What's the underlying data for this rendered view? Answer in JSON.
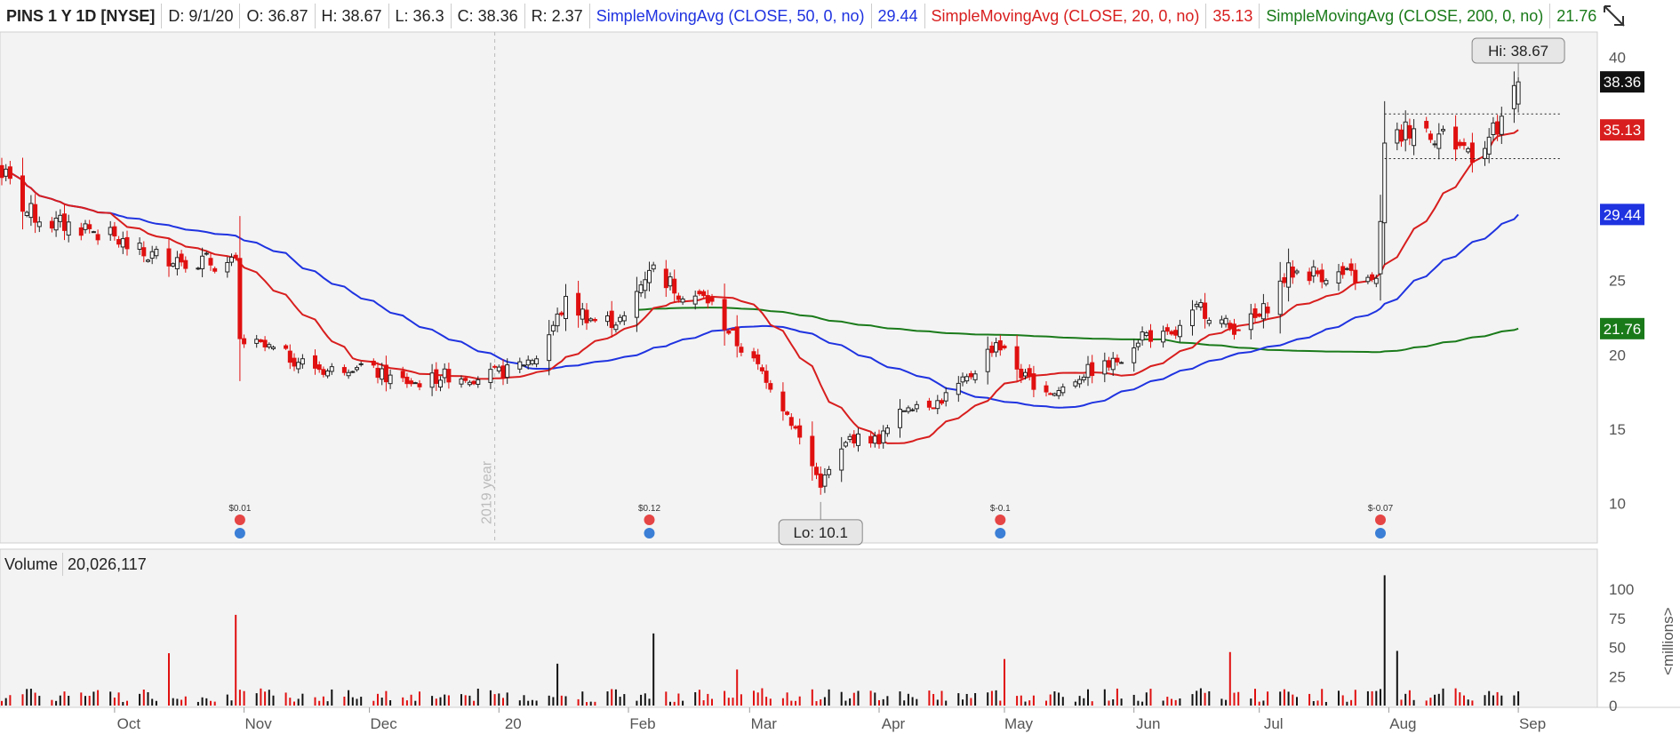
{
  "header": {
    "symbol": "PINS 1 Y 1D [NYSE]",
    "date": "D: 9/1/20",
    "open": "O: 36.87",
    "high": "H: 38.67",
    "low": "L: 36.3",
    "close": "C: 38.36",
    "range": "R: 2.37",
    "sma50_label": "SimpleMovingAvg (CLOSE, 50, 0, no)",
    "sma50_value": "29.44",
    "sma20_label": "SimpleMovingAvg (CLOSE, 20, 0, no)",
    "sma20_value": "35.13",
    "sma200_label": "SimpleMovingAvg (CLOSE, 200, 0, no)",
    "sma200_value": "21.76"
  },
  "colors": {
    "up": "#222222",
    "down": "#e01010",
    "sma50": "#1f33e0",
    "sma20": "#d81e1e",
    "sma200": "#1a7a1a",
    "grid_bg": "#f3f3f3",
    "volume_up": "#111111",
    "volume_down": "#e01010"
  },
  "icons": [
    "crosshair-toggle-icon",
    "earnings-icon",
    "info-bulb-icon"
  ],
  "chart_data": {
    "type": "candlestick",
    "y_ticks": [
      10,
      15,
      20,
      25,
      40
    ],
    "ylim": [
      8,
      41
    ],
    "x_ticks": [
      {
        "label": "Oct",
        "date": "2019-10-01"
      },
      {
        "label": "Nov",
        "date": "2019-11-01"
      },
      {
        "label": "Dec",
        "date": "2019-12-01"
      },
      {
        "label": "20",
        "date": "2020-01-01"
      },
      {
        "label": "Feb",
        "date": "2020-02-01"
      },
      {
        "label": "Mar",
        "date": "2020-03-01"
      },
      {
        "label": "Apr",
        "date": "2020-04-01"
      },
      {
        "label": "May",
        "date": "2020-05-01"
      },
      {
        "label": "Jun",
        "date": "2020-06-01"
      },
      {
        "label": "Jul",
        "date": "2020-07-01"
      },
      {
        "label": "Aug",
        "date": "2020-08-01"
      },
      {
        "label": "Sep",
        "date": "2020-09-01"
      }
    ],
    "xlim": [
      "2019-09-04",
      "2020-09-18"
    ],
    "year_divider": {
      "label": "2019 year",
      "date": "2019-12-31"
    },
    "close_series": [
      [
        "2019-09-03",
        32.8
      ],
      [
        "2019-09-10",
        29.6
      ],
      [
        "2019-09-17",
        28.8
      ],
      [
        "2019-09-24",
        28.6
      ],
      [
        "2019-10-01",
        27.8
      ],
      [
        "2019-10-08",
        26.7
      ],
      [
        "2019-10-15",
        26.6
      ],
      [
        "2019-10-22",
        26.3
      ],
      [
        "2019-10-30",
        26.0
      ],
      [
        "2019-10-31",
        20.9
      ],
      [
        "2019-11-07",
        20.4
      ],
      [
        "2019-11-14",
        19.6
      ],
      [
        "2019-11-21",
        18.9
      ],
      [
        "2019-11-28",
        19.4
      ],
      [
        "2019-12-05",
        18.5
      ],
      [
        "2019-12-12",
        18.1
      ],
      [
        "2019-12-19",
        18.6
      ],
      [
        "2019-12-27",
        18.5
      ],
      [
        "2020-01-03",
        18.9
      ],
      [
        "2020-01-10",
        19.9
      ],
      [
        "2020-01-17",
        23.5
      ],
      [
        "2020-01-24",
        22.3
      ],
      [
        "2020-01-31",
        22.3
      ],
      [
        "2020-02-06",
        26.0
      ],
      [
        "2020-02-13",
        24.3
      ],
      [
        "2020-02-20",
        23.7
      ],
      [
        "2020-02-27",
        20.8
      ],
      [
        "2020-03-05",
        18.5
      ],
      [
        "2020-03-12",
        15.0
      ],
      [
        "2020-03-18",
        11.3
      ],
      [
        "2020-03-25",
        14.4
      ],
      [
        "2020-04-01",
        14.3
      ],
      [
        "2020-04-08",
        16.7
      ],
      [
        "2020-04-15",
        16.8
      ],
      [
        "2020-04-22",
        18.3
      ],
      [
        "2020-04-29",
        20.9
      ],
      [
        "2020-05-06",
        18.4
      ],
      [
        "2020-05-13",
        17.4
      ],
      [
        "2020-05-20",
        18.8
      ],
      [
        "2020-05-27",
        19.4
      ],
      [
        "2020-06-03",
        21.4
      ],
      [
        "2020-06-10",
        21.1
      ],
      [
        "2020-06-17",
        23.2
      ],
      [
        "2020-06-24",
        21.8
      ],
      [
        "2020-07-01",
        22.5
      ],
      [
        "2020-07-08",
        25.6
      ],
      [
        "2020-07-15",
        25.5
      ],
      [
        "2020-07-22",
        25.3
      ],
      [
        "2020-07-29",
        24.8
      ],
      [
        "2020-07-31",
        33.8
      ],
      [
        "2020-08-07",
        35.6
      ],
      [
        "2020-08-14",
        34.7
      ],
      [
        "2020-08-21",
        33.7
      ],
      [
        "2020-08-28",
        35.3
      ],
      [
        "2020-09-01",
        38.36
      ]
    ],
    "last_values": {
      "close": 38.36,
      "sma20": 35.13,
      "sma50": 29.44,
      "sma200": 21.76
    },
    "annotations": {
      "high": {
        "label": "Hi: 38.67",
        "date": "2020-09-01",
        "value": 38.67
      },
      "low": {
        "label": "Lo: 10.1",
        "date": "2020-03-18",
        "value": 10.1
      }
    },
    "earnings": [
      {
        "label": "$0.01",
        "date": "2019-10-31"
      },
      {
        "label": "$0.12",
        "date": "2020-02-06"
      },
      {
        "label": "$-0.1",
        "date": "2020-04-30"
      },
      {
        "label": "$-0.07",
        "date": "2020-07-30"
      }
    ],
    "volume": {
      "label": "Volume",
      "value": "20,026,117",
      "unit_label": "<millions>",
      "y_ticks": [
        0,
        25,
        50,
        75,
        100
      ],
      "ylim": [
        0,
        110
      ],
      "spikes": [
        [
          "2019-10-30",
          78
        ],
        [
          "2020-02-07",
          62
        ],
        [
          "2020-07-31",
          112
        ],
        [
          "2020-08-03",
          47
        ],
        [
          "2020-06-24",
          46
        ],
        [
          "2020-05-01",
          40
        ],
        [
          "2019-10-14",
          45
        ],
        [
          "2020-01-15",
          36
        ],
        [
          "2020-02-27",
          31
        ]
      ]
    }
  }
}
